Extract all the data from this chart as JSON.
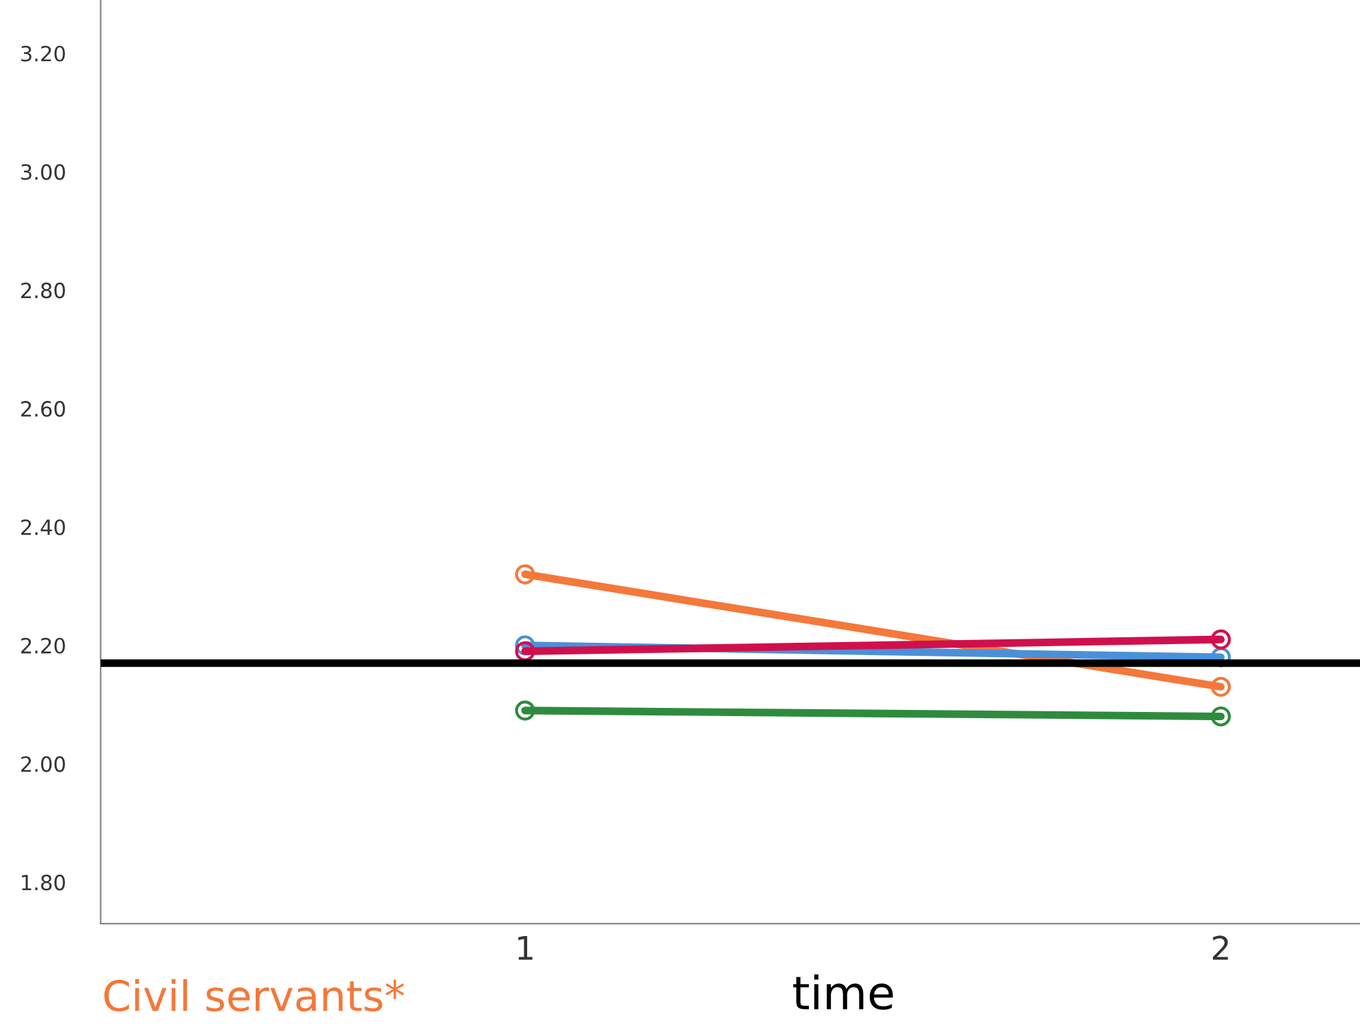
{
  "chart_data": {
    "type": "line",
    "xlabel": "time",
    "x": [
      1,
      2
    ],
    "xlim": [
      0.39,
      2.2
    ],
    "xticks": [
      1,
      2
    ],
    "ylim": [
      1.73,
      3.29
    ],
    "yticks": [
      {
        "value": 1.8,
        "label": "1.80"
      },
      {
        "value": 2.0,
        "label": "2.00"
      },
      {
        "value": 2.2,
        "label": "2.20"
      },
      {
        "value": 2.4,
        "label": "2.40"
      },
      {
        "value": 2.6,
        "label": "2.60"
      },
      {
        "value": 2.8,
        "label": "2.80"
      },
      {
        "value": 3.0,
        "label": "3.00"
      },
      {
        "value": 3.2,
        "label": "3.20"
      }
    ],
    "series": [
      {
        "color": "#f4783a",
        "values": [
          2.32,
          2.13
        ]
      },
      {
        "color": "#4a90d9",
        "values": [
          2.2,
          2.18
        ]
      },
      {
        "color": "#d0104c",
        "values": [
          2.19,
          2.21
        ]
      },
      {
        "color": "#2e8b3e",
        "values": [
          2.09,
          2.08
        ]
      }
    ],
    "ref_lines": [
      {
        "axis": "y",
        "value": 2.17,
        "color": "#000000"
      }
    ],
    "annotations": [
      "Civil servants*"
    ],
    "marker": "circle",
    "line_style": "solid",
    "grid": false,
    "legend": false
  }
}
